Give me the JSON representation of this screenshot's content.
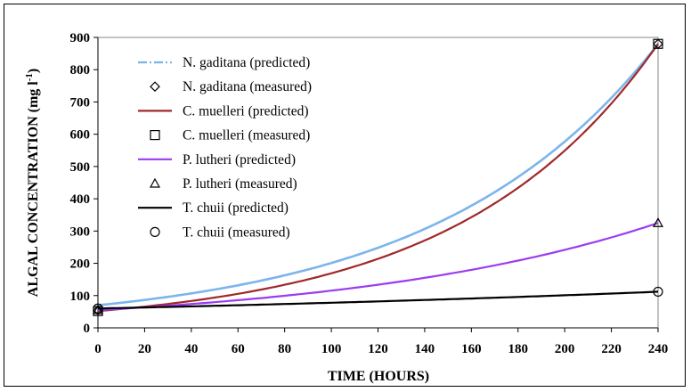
{
  "chart_data": {
    "type": "line",
    "xlabel": "TIME (HOURS)",
    "ylabel_main": "ALGAL CONCENTRATION (mg l",
    "ylabel_sup": "-1",
    "ylabel_close": ")",
    "xlim": [
      0,
      240
    ],
    "ylim": [
      0,
      900
    ],
    "xticks": [
      "0",
      "20",
      "40",
      "60",
      "80",
      "100",
      "120",
      "140",
      "160",
      "180",
      "200",
      "220",
      "240"
    ],
    "yticks": [
      "0",
      "100",
      "200",
      "300",
      "400",
      "500",
      "600",
      "700",
      "800",
      "900"
    ],
    "legend_position": "top-left",
    "grid": false,
    "series": [
      {
        "name": "N. gaditana (predicted)",
        "kind": "line",
        "color": "#7cb5ec",
        "dashed": true,
        "y0": 70,
        "y240": 880
      },
      {
        "name": "N. gaditana (measured)",
        "kind": "marker",
        "marker": "diamond",
        "points": [
          [
            0,
            55
          ],
          [
            240,
            880
          ]
        ]
      },
      {
        "name": "C. muelleri (predicted)",
        "kind": "line",
        "color": "#a0282a",
        "dashed": false,
        "y0": 52,
        "y240": 880
      },
      {
        "name": "C. muelleri (measured)",
        "kind": "marker",
        "marker": "square",
        "points": [
          [
            0,
            52
          ],
          [
            240,
            880
          ]
        ]
      },
      {
        "name": "P. lutheri (predicted)",
        "kind": "line",
        "color": "#9a3cf0",
        "dashed": false,
        "y0": 55,
        "y240": 325
      },
      {
        "name": "P. lutheri (measured)",
        "kind": "marker",
        "marker": "triangle",
        "points": [
          [
            0,
            55
          ],
          [
            240,
            325
          ]
        ]
      },
      {
        "name": "T. chuii (predicted)",
        "kind": "line",
        "color": "#000000",
        "dashed": false,
        "y0": 60,
        "y240": 112
      },
      {
        "name": "T. chuii (measured)",
        "kind": "marker",
        "marker": "circle",
        "points": [
          [
            0,
            60
          ],
          [
            240,
            112
          ]
        ]
      }
    ],
    "legend_labels": [
      "N. gaditana (predicted)",
      "N. gaditana (measured)",
      "C. muelleri (predicted)",
      "C. muelleri (measured)",
      "P. lutheri (predicted)",
      "P. lutheri (measured)",
      "T. chuii (predicted)",
      "T. chuii (measured)"
    ]
  }
}
